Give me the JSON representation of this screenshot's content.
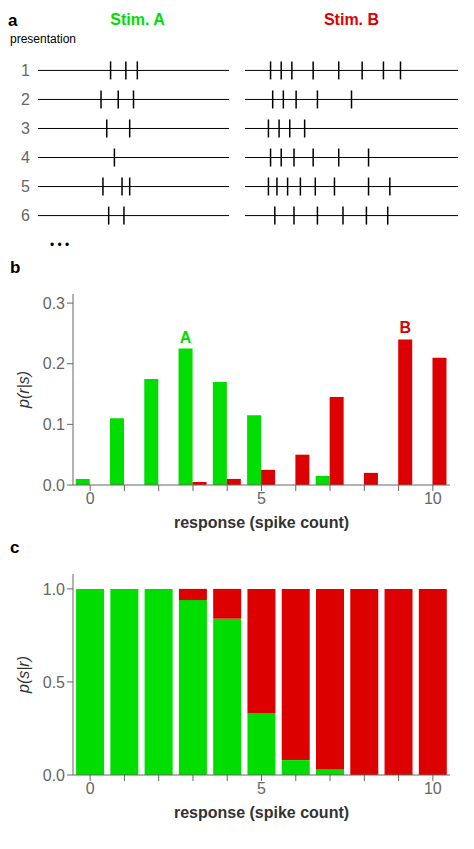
{
  "chart_data": [
    {
      "type": "raster",
      "title": "a",
      "ylabel": "presentation",
      "categories": [
        "1",
        "2",
        "3",
        "4",
        "5",
        "6"
      ],
      "xlim": [
        0,
        1
      ],
      "tick_labels": "y",
      "annotations": [
        "• • •"
      ],
      "series": [
        {
          "name": "Stim. A",
          "color": "#00dd00",
          "values": [
            [
              0.38,
              0.46,
              0.52
            ],
            [
              0.33,
              0.42,
              0.5
            ],
            [
              0.36,
              0.48
            ],
            [
              0.4
            ],
            [
              0.34,
              0.44,
              0.48
            ],
            [
              0.37,
              0.45
            ]
          ]
        },
        {
          "name": "Stim. B",
          "color": "#dd0000",
          "values": [
            [
              0.12,
              0.17,
              0.22,
              0.32,
              0.44,
              0.55,
              0.65,
              0.73
            ],
            [
              0.13,
              0.18,
              0.24,
              0.34,
              0.5
            ],
            [
              0.11,
              0.16,
              0.21,
              0.28
            ],
            [
              0.12,
              0.17,
              0.23,
              0.32,
              0.44,
              0.58
            ],
            [
              0.11,
              0.15,
              0.2,
              0.26,
              0.33,
              0.42,
              0.58,
              0.68
            ],
            [
              0.14,
              0.23,
              0.34,
              0.46,
              0.57,
              0.67
            ]
          ]
        }
      ]
    },
    {
      "type": "bar",
      "title": "b",
      "xlabel": "response (spike count)",
      "ylabel": "p(r|s)",
      "categories": [
        0,
        null,
        null,
        null,
        null,
        5,
        null,
        null,
        null,
        null,
        10
      ],
      "ylim": [
        0,
        0.315
      ],
      "yticks": [
        {
          "value": 0,
          "label": "0.0"
        },
        0.1,
        0.2,
        0.3
      ],
      "series": [
        {
          "name": "A",
          "color": "#00dd00",
          "values": [
            0.01,
            0.11,
            0.175,
            0.225,
            0.17,
            0.115,
            0.0,
            0.015,
            0.0,
            0.0,
            0.0
          ]
        },
        {
          "name": "B",
          "color": "#dd0000",
          "values": [
            0.0,
            0.0,
            0.0,
            0.005,
            0.01,
            0.025,
            0.05,
            0.145,
            0.02,
            0.24,
            0.21
          ]
        }
      ]
    },
    {
      "type": "bar",
      "title": "c",
      "stacked": true,
      "xlabel": "response (spike count)",
      "ylabel": "p(s|r)",
      "categories": [
        0,
        null,
        null,
        null,
        null,
        5,
        null,
        null,
        null,
        null,
        10
      ],
      "ylim": [
        0,
        1.08
      ],
      "yticks": [
        {
          "value": 0,
          "label": "0.0"
        },
        0.5,
        {
          "value": 1,
          "label": "1.0"
        }
      ],
      "series": [
        {
          "color": "#00dd00",
          "values": [
            1.0,
            1.0,
            1.0,
            0.94,
            0.84,
            0.33,
            0.08,
            0.03,
            0.0,
            0.0,
            0.0
          ]
        },
        {
          "color": "#dd0000",
          "values": [
            0.0,
            0.0,
            0.0,
            0.06,
            0.16,
            0.67,
            0.92,
            0.97,
            1.0,
            1.0,
            1.0
          ]
        }
      ]
    }
  ]
}
